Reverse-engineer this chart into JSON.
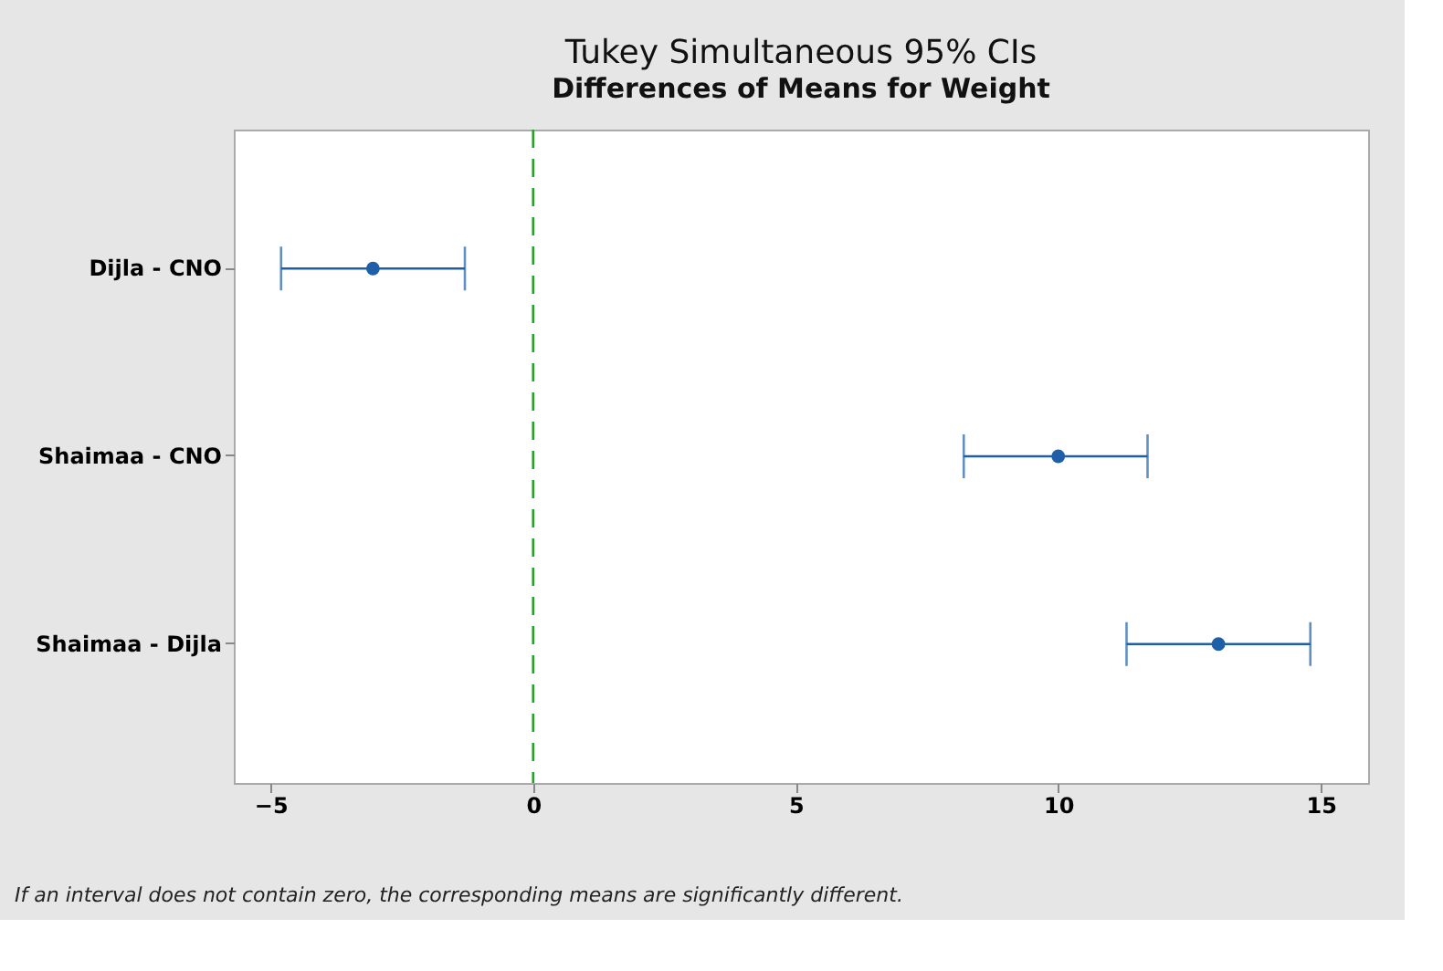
{
  "chart_data": {
    "type": "scatter",
    "orientation": "horizontal",
    "title": "Tukey Simultaneous 95% CIs",
    "subtitle": "Differences of Means for Weight",
    "categories": [
      "Dijla   - CNO",
      "Shaimaa   - CNO",
      "Shaimaa   - Dijla"
    ],
    "values": [
      -3.05,
      10.0,
      13.05
    ],
    "errors": [
      [
        -4.8,
        -1.3
      ],
      [
        8.2,
        11.7
      ],
      [
        11.3,
        14.8
      ]
    ],
    "color": "#1f5fa8",
    "marker": "circle",
    "xlim": [
      -5.7,
      15.9
    ],
    "xticks": [
      -5,
      0,
      5,
      10,
      15
    ],
    "ref_lines": [
      {
        "axis": "x",
        "value": 0,
        "color": "#2ca02c",
        "line_style": "dashed"
      }
    ],
    "annotations": [
      "If an interval does not contain zero, the corresponding means are significantly different."
    ]
  }
}
